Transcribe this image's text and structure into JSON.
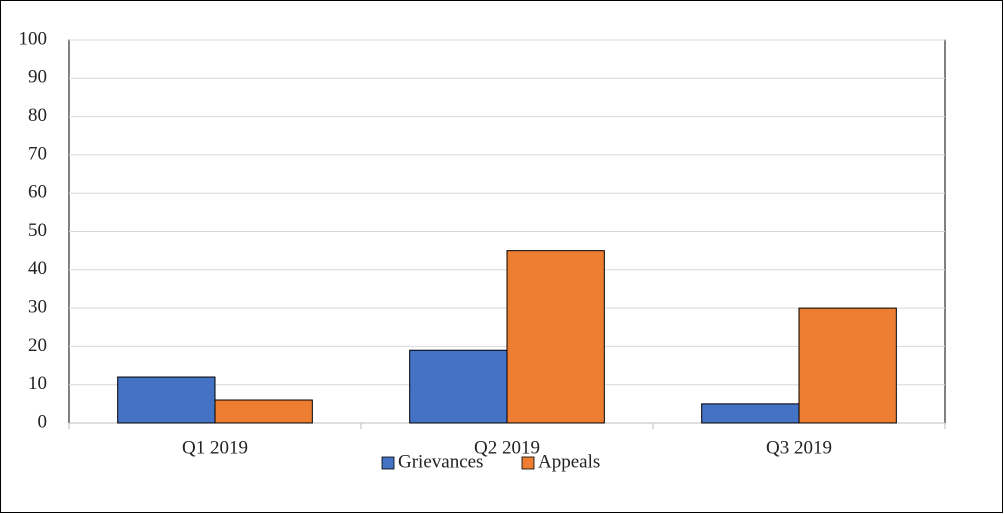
{
  "chart_data": {
    "type": "bar",
    "categories": [
      "Q1 2019",
      "Q2 2019",
      "Q3 2019"
    ],
    "series": [
      {
        "name": "Grievances",
        "color": "#4472c4",
        "values": [
          12,
          19,
          5
        ]
      },
      {
        "name": "Appeals",
        "color": "#ed7d31",
        "values": [
          6,
          45,
          30
        ]
      }
    ],
    "ylim": [
      0,
      100
    ],
    "yticks": [
      0,
      10,
      20,
      30,
      40,
      50,
      60,
      70,
      80,
      90,
      100
    ],
    "grid": true,
    "legend": "bottom"
  }
}
